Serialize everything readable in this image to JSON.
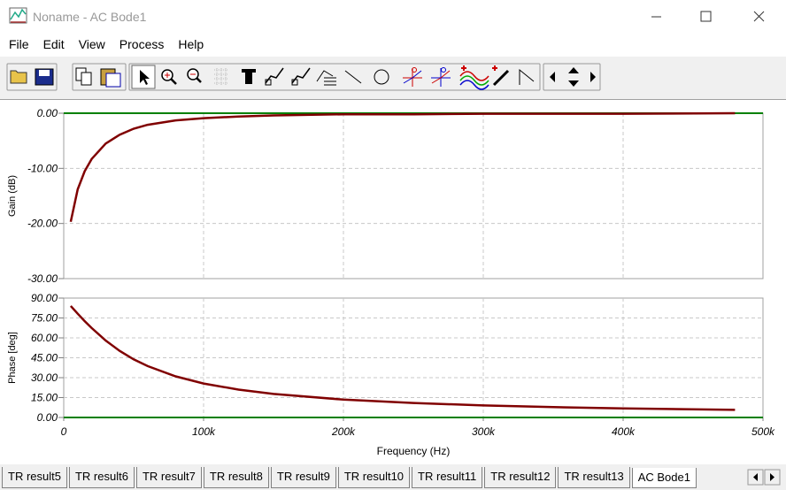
{
  "window": {
    "title": "Noname - AC Bode1"
  },
  "menu": [
    "File",
    "Edit",
    "View",
    "Process",
    "Help"
  ],
  "chart_data": [
    {
      "type": "line",
      "ylabel": "Gain (dB)",
      "x": [
        5000,
        10000,
        15000,
        20000,
        30000,
        40000,
        50000,
        60000,
        80000,
        100000,
        125000,
        150000,
        200000,
        250000,
        300000,
        350000,
        400000,
        480000
      ],
      "series": [
        {
          "color": "#800000",
          "values": [
            -19.7,
            -13.8,
            -10.5,
            -8.3,
            -5.5,
            -3.9,
            -2.8,
            -2.1,
            -1.3,
            -0.9,
            -0.6,
            -0.4,
            -0.2,
            -0.2,
            -0.1,
            -0.1,
            -0.1,
            0.0
          ]
        }
      ],
      "xlim": [
        0,
        500000
      ],
      "ylim": [
        -30,
        0
      ],
      "yticks": [
        {
          "value": 0,
          "label": "0.00"
        },
        {
          "value": -10,
          "label": "-10.00"
        },
        {
          "value": -20,
          "label": "-20.00"
        },
        {
          "value": -30,
          "label": "-30.00"
        }
      ],
      "grid": true,
      "baseline_color": "#008000"
    },
    {
      "type": "line",
      "xlabel": "Frequency (Hz)",
      "ylabel": "Phase [deg]",
      "x": [
        5000,
        10000,
        15000,
        20000,
        30000,
        40000,
        50000,
        60000,
        80000,
        100000,
        125000,
        150000,
        200000,
        250000,
        300000,
        350000,
        400000,
        480000
      ],
      "series": [
        {
          "color": "#800000",
          "values": [
            84.1,
            78.2,
            72.6,
            67.4,
            58.0,
            50.2,
            43.8,
            38.7,
            31.0,
            25.6,
            21.0,
            17.7,
            13.5,
            10.9,
            9.1,
            7.8,
            6.8,
            5.7
          ]
        }
      ],
      "xlim": [
        0,
        500000
      ],
      "ylim": [
        0,
        90
      ],
      "xticks": [
        0,
        {
          "value": 100000,
          "label": "100k"
        },
        {
          "value": 200000,
          "label": "200k"
        },
        {
          "value": 300000,
          "label": "300k"
        },
        {
          "value": 400000,
          "label": "400k"
        },
        {
          "value": 500000,
          "label": "500k"
        }
      ],
      "yticks": [
        {
          "value": 90,
          "label": "90.00"
        },
        {
          "value": 75,
          "label": "75.00"
        },
        {
          "value": 60,
          "label": "60.00"
        },
        {
          "value": 45,
          "label": "45.00"
        },
        {
          "value": 30,
          "label": "30.00"
        },
        {
          "value": 15,
          "label": "15.00"
        },
        {
          "value": 0,
          "label": "0.00"
        }
      ],
      "grid": true,
      "baseline_color": "#008000"
    }
  ],
  "tabs": [
    "TR result5",
    "TR result6",
    "TR result7",
    "TR result8",
    "TR result9",
    "TR result10",
    "TR result11",
    "TR result12",
    "TR result13",
    "AC Bode1"
  ],
  "active_tab": 9
}
